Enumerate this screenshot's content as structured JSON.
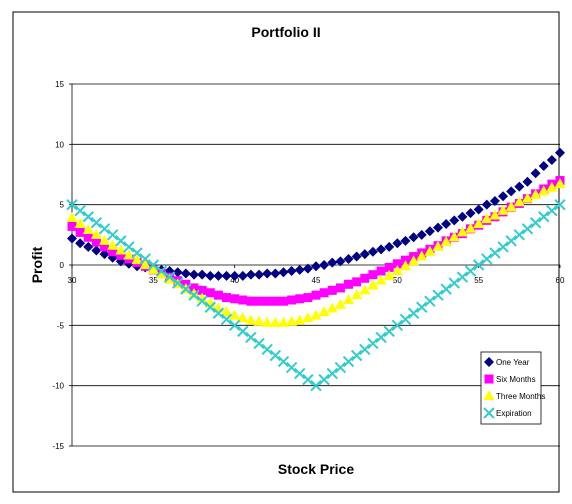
{
  "chart_data": {
    "type": "scatter",
    "title": "Portfolio II",
    "xlabel": "Stock Price",
    "ylabel": "Profit",
    "xlim": [
      30,
      60
    ],
    "ylim": [
      -15,
      15
    ],
    "x_ticks": [
      30,
      35,
      40,
      45,
      50,
      55,
      60
    ],
    "y_ticks": [
      -15,
      -10,
      -5,
      0,
      5,
      10,
      15
    ],
    "grid": "horizontal",
    "legend_position": "bottom-right",
    "x_step": 0.5,
    "series": [
      {
        "name": "One Year",
        "color": "#000080",
        "marker": "diamond",
        "x": [
          30,
          30.5,
          31,
          31.5,
          32,
          32.5,
          33,
          33.5,
          34,
          34.5,
          35,
          35.5,
          36,
          36.5,
          37,
          37.5,
          38,
          38.5,
          39,
          39.5,
          40,
          40.5,
          41,
          41.5,
          42,
          42.5,
          43,
          43.5,
          44,
          44.5,
          45,
          45.5,
          46,
          46.5,
          47,
          47.5,
          48,
          48.5,
          49,
          49.5,
          50,
          50.5,
          51,
          51.5,
          52,
          52.5,
          53,
          53.5,
          54,
          54.5,
          55,
          55.5,
          56,
          56.5,
          57,
          57.5,
          58,
          58.5,
          59,
          59.5,
          60
        ],
        "values": [
          2.2,
          1.8,
          1.5,
          1.2,
          0.9,
          0.6,
          0.3,
          0.1,
          -0.1,
          -0.2,
          -0.3,
          -0.4,
          -0.5,
          -0.6,
          -0.7,
          -0.8,
          -0.8,
          -0.9,
          -0.9,
          -0.9,
          -0.9,
          -0.9,
          -0.8,
          -0.8,
          -0.7,
          -0.7,
          -0.6,
          -0.5,
          -0.4,
          -0.3,
          -0.1,
          0.0,
          0.2,
          0.3,
          0.5,
          0.7,
          0.9,
          1.1,
          1.3,
          1.5,
          1.8,
          2.0,
          2.3,
          2.5,
          2.8,
          3.1,
          3.4,
          3.7,
          4.0,
          4.3,
          4.6,
          5.0,
          5.3,
          5.7,
          6.1,
          6.5,
          6.9,
          7.6,
          8.2,
          8.7,
          9.3
        ]
      },
      {
        "name": "Six Months",
        "color": "#FF00FF",
        "marker": "square",
        "x": [
          30,
          30.5,
          31,
          31.5,
          32,
          32.5,
          33,
          33.5,
          34,
          34.5,
          35,
          35.5,
          36,
          36.5,
          37,
          37.5,
          38,
          38.5,
          39,
          39.5,
          40,
          40.5,
          41,
          41.5,
          42,
          42.5,
          43,
          43.5,
          44,
          44.5,
          45,
          45.5,
          46,
          46.5,
          47,
          47.5,
          48,
          48.5,
          49,
          49.5,
          50,
          50.5,
          51,
          51.5,
          52,
          52.5,
          53,
          53.5,
          54,
          54.5,
          55,
          55.5,
          56,
          56.5,
          57,
          57.5,
          58,
          58.5,
          59,
          59.5,
          60
        ],
        "values": [
          3.2,
          2.7,
          2.3,
          1.9,
          1.5,
          1.1,
          0.8,
          0.5,
          0.2,
          -0.1,
          -0.4,
          -0.7,
          -1.0,
          -1.3,
          -1.6,
          -1.9,
          -2.1,
          -2.3,
          -2.5,
          -2.7,
          -2.8,
          -2.9,
          -3.0,
          -3.0,
          -3.0,
          -3.0,
          -3.0,
          -2.9,
          -2.8,
          -2.7,
          -2.5,
          -2.3,
          -2.1,
          -1.9,
          -1.6,
          -1.4,
          -1.1,
          -0.8,
          -0.5,
          -0.2,
          0.1,
          0.4,
          0.7,
          1.0,
          1.3,
          1.6,
          2.0,
          2.3,
          2.6,
          3.0,
          3.3,
          3.7,
          4.0,
          4.4,
          4.8,
          5.1,
          5.5,
          5.9,
          6.3,
          6.7,
          7.0
        ]
      },
      {
        "name": "Three Months",
        "color": "#FFFF00",
        "marker": "triangle",
        "x": [
          30,
          30.5,
          31,
          31.5,
          32,
          32.5,
          33,
          33.5,
          34,
          34.5,
          35,
          35.5,
          36,
          36.5,
          37,
          37.5,
          38,
          38.5,
          39,
          39.5,
          40,
          40.5,
          41,
          41.5,
          42,
          42.5,
          43,
          43.5,
          44,
          44.5,
          45,
          45.5,
          46,
          46.5,
          47,
          47.5,
          48,
          48.5,
          49,
          49.5,
          50,
          50.5,
          51,
          51.5,
          52,
          52.5,
          53,
          53.5,
          54,
          54.5,
          55,
          55.5,
          56,
          56.5,
          57,
          57.5,
          58,
          58.5,
          59,
          59.5,
          60
        ],
        "values": [
          3.9,
          3.4,
          2.9,
          2.5,
          2.0,
          1.6,
          1.2,
          0.8,
          0.4,
          0.0,
          -0.4,
          -0.8,
          -1.2,
          -1.6,
          -2.0,
          -2.4,
          -2.8,
          -3.2,
          -3.6,
          -3.9,
          -4.2,
          -4.4,
          -4.6,
          -4.7,
          -4.8,
          -4.8,
          -4.8,
          -4.7,
          -4.6,
          -4.4,
          -4.2,
          -3.9,
          -3.6,
          -3.3,
          -2.9,
          -2.5,
          -2.1,
          -1.7,
          -1.3,
          -0.9,
          -0.5,
          -0.1,
          0.3,
          0.7,
          1.1,
          1.5,
          1.9,
          2.3,
          2.7,
          3.0,
          3.4,
          3.8,
          4.1,
          4.5,
          4.8,
          5.2,
          5.5,
          5.8,
          6.1,
          6.4,
          6.7
        ]
      },
      {
        "name": "Expiration",
        "color": "#33CCCC",
        "marker": "x",
        "x": [
          30,
          30.5,
          31,
          31.5,
          32,
          32.5,
          33,
          33.5,
          34,
          34.5,
          35,
          35.5,
          36,
          36.5,
          37,
          37.5,
          38,
          38.5,
          39,
          39.5,
          40,
          40.5,
          41,
          41.5,
          42,
          42.5,
          43,
          43.5,
          44,
          44.5,
          45,
          45.5,
          46,
          46.5,
          47,
          47.5,
          48,
          48.5,
          49,
          49.5,
          50,
          50.5,
          51,
          51.5,
          52,
          52.5,
          53,
          53.5,
          54,
          54.5,
          55,
          55.5,
          56,
          56.5,
          57,
          57.5,
          58,
          58.5,
          59,
          59.5,
          60
        ],
        "values": [
          5.0,
          4.5,
          4.0,
          3.5,
          3.0,
          2.5,
          2.0,
          1.5,
          1.0,
          0.5,
          0.0,
          -0.5,
          -1.0,
          -1.5,
          -2.0,
          -2.5,
          -3.0,
          -3.5,
          -4.0,
          -4.5,
          -5.0,
          -5.5,
          -6.0,
          -6.5,
          -7.0,
          -7.5,
          -8.0,
          -8.5,
          -9.0,
          -9.5,
          -10.0,
          -9.5,
          -9.0,
          -8.5,
          -8.0,
          -7.5,
          -7.0,
          -6.5,
          -6.0,
          -5.5,
          -5.0,
          -4.5,
          -4.0,
          -3.5,
          -3.0,
          -2.5,
          -2.0,
          -1.5,
          -1.0,
          -0.5,
          0.0,
          0.5,
          1.0,
          1.5,
          2.0,
          2.5,
          3.0,
          3.5,
          4.0,
          4.5,
          5.0
        ]
      }
    ]
  }
}
